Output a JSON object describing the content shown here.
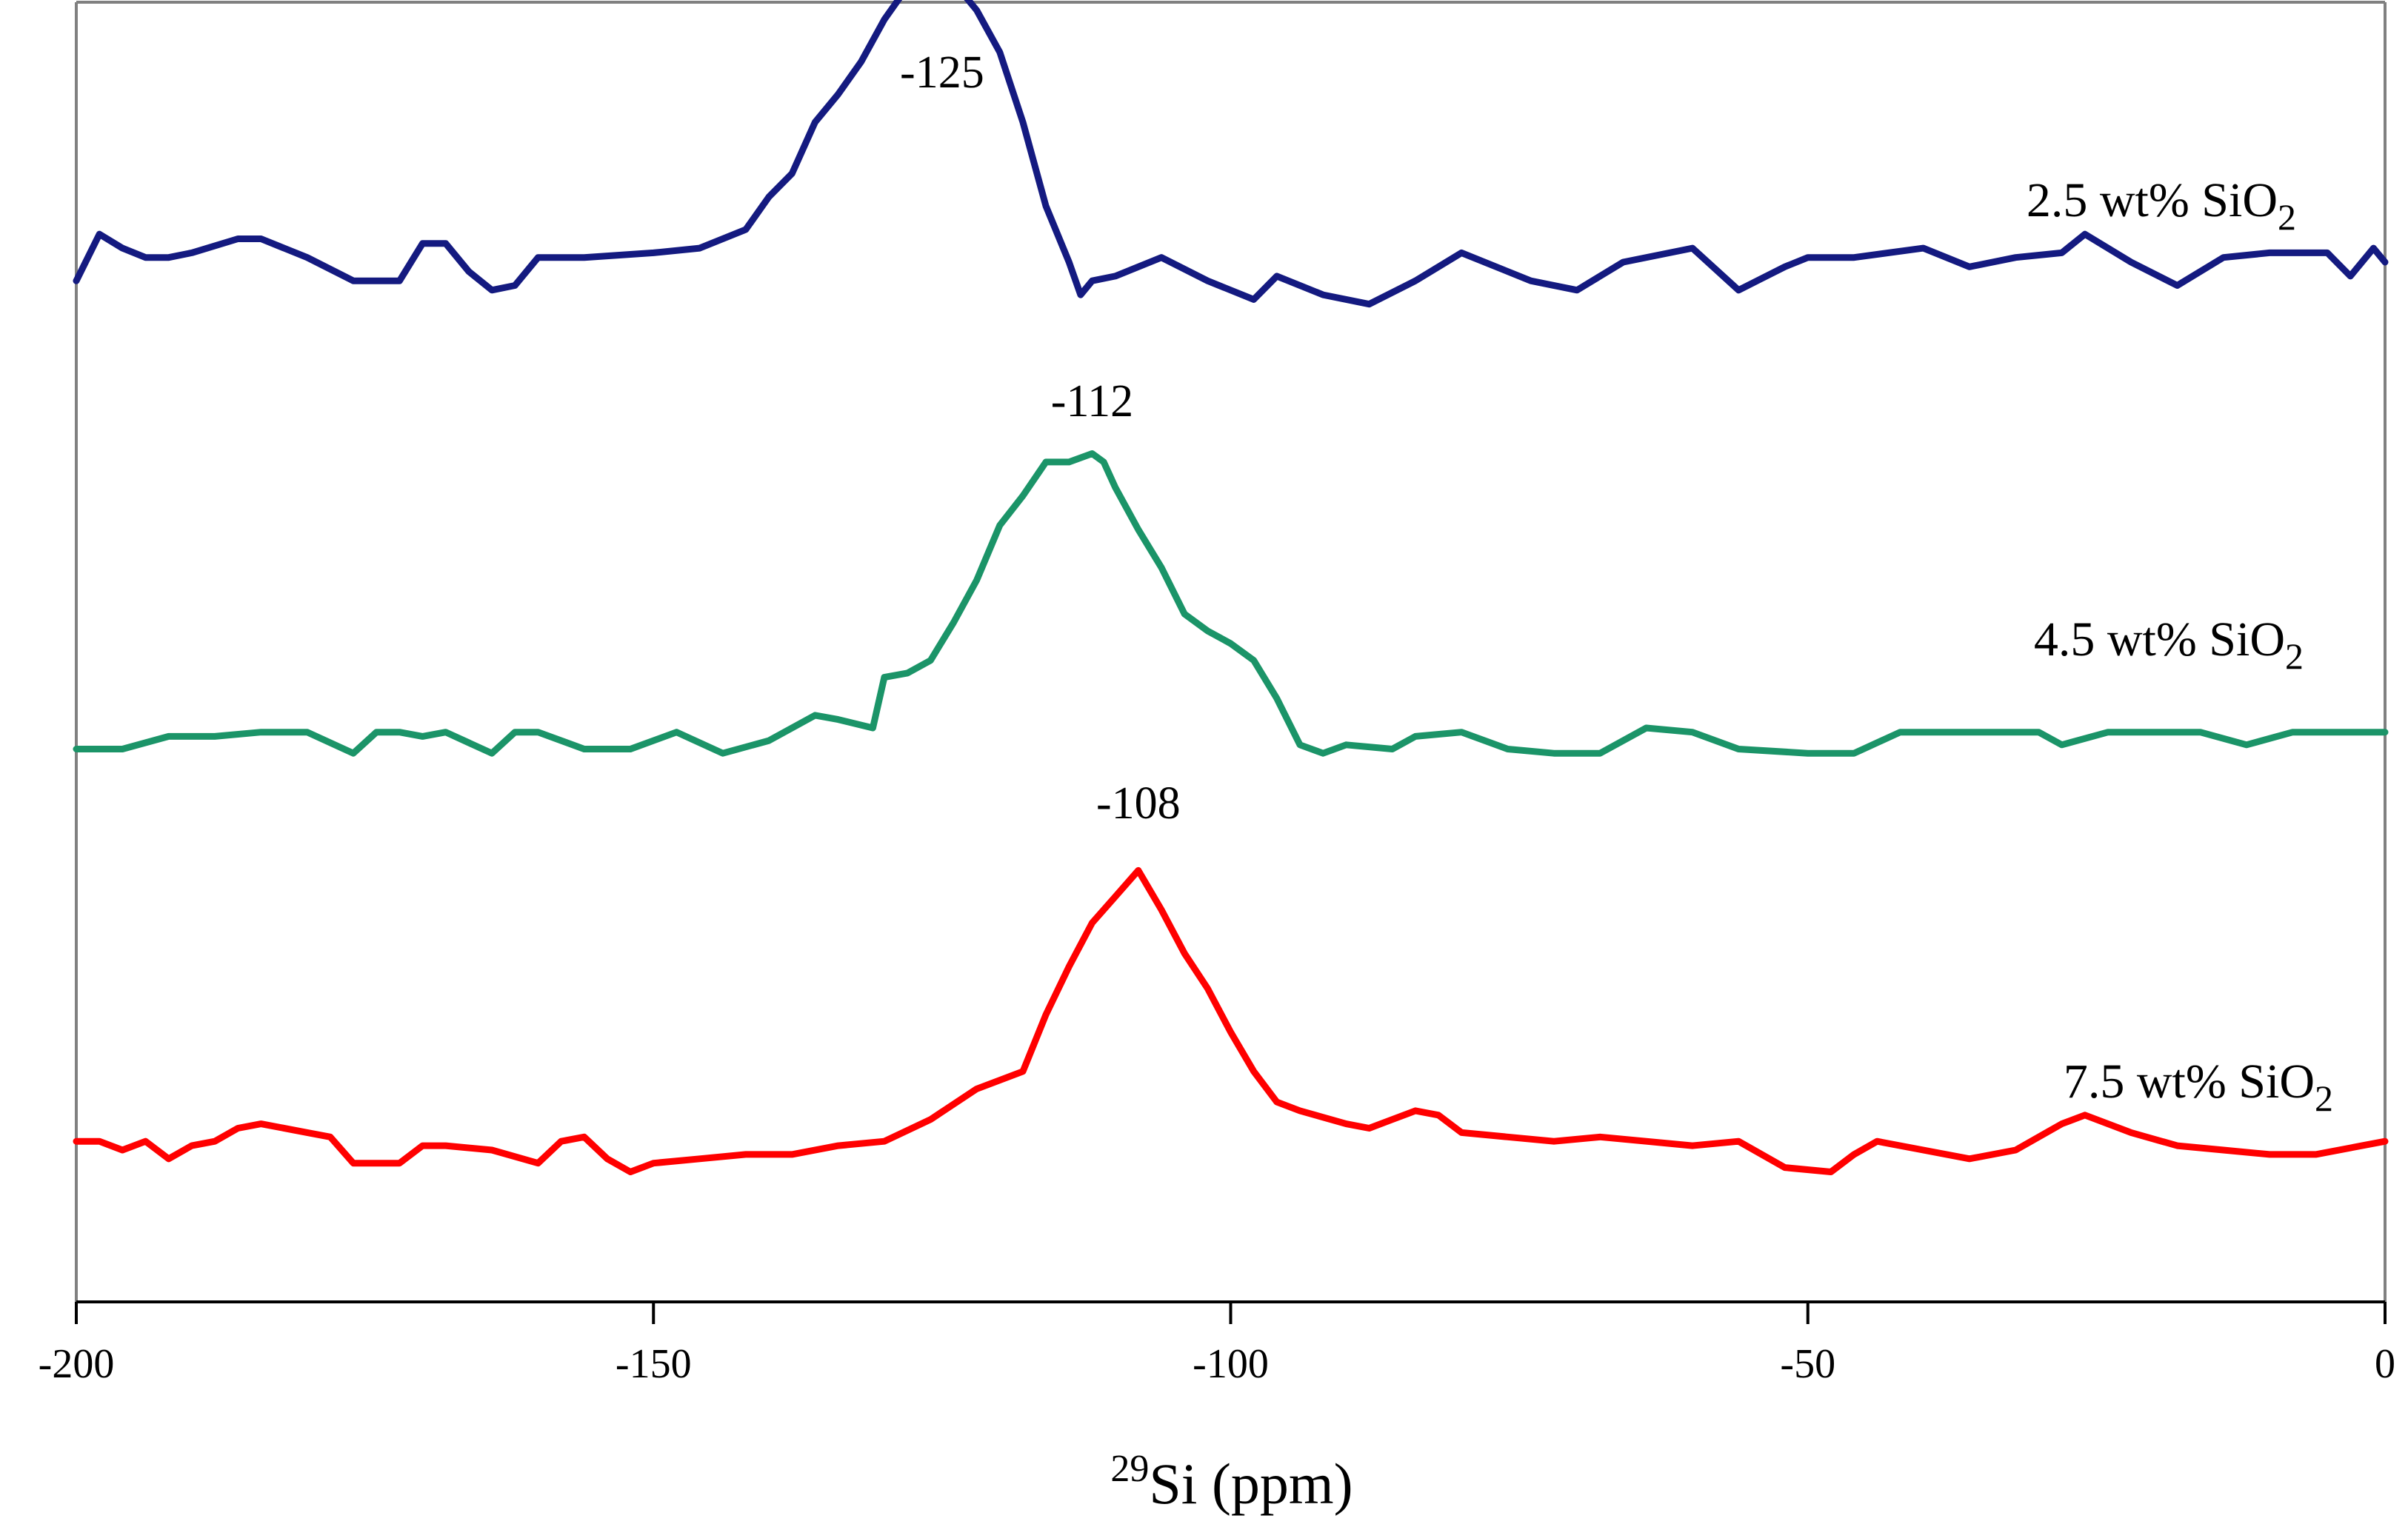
{
  "chart_data": {
    "type": "line",
    "title": "",
    "xlabel": {
      "superscript": "29",
      "main": "Si (ppm)"
    },
    "xlim": [
      -200,
      0
    ],
    "xticks": [
      -200,
      -150,
      -100,
      -50,
      0
    ],
    "ylabel": "",
    "grid": false,
    "legend": "none",
    "series": [
      {
        "name": "2.5 wt% SiO2",
        "label": {
          "main": "2.5 wt% SiO",
          "sub": "2"
        },
        "color": "#141a80",
        "peak_label": "-125",
        "peak_x": -125,
        "x": [
          -200,
          -198,
          -196,
          -194,
          -192,
          -190,
          -186,
          -184,
          -180,
          -176,
          -172,
          -170,
          -168,
          -166,
          -164,
          -162,
          -160,
          -156,
          -150,
          -146,
          -142,
          -140,
          -138,
          -136,
          -134,
          -132,
          -130,
          -128,
          -126,
          -124,
          -122,
          -120,
          -118,
          -116,
          -114,
          -113,
          -112,
          -110,
          -106,
          -102,
          -98,
          -96,
          -92,
          -88,
          -84,
          -80,
          -74,
          -70,
          -66,
          -60,
          -56,
          -52,
          -50,
          -46,
          -40,
          -36,
          -32,
          -28,
          -26,
          -22,
          -18,
          -14,
          -10,
          -5,
          -3,
          -1,
          0
        ],
        "y": [
          6,
          16,
          13,
          11,
          11,
          12,
          15,
          15,
          11,
          6,
          6,
          14,
          14,
          8,
          4,
          5,
          11,
          11,
          12,
          13,
          17,
          24,
          29,
          40,
          46,
          53,
          62,
          69,
          72,
          70,
          64,
          55,
          40,
          22,
          10,
          3,
          6,
          7,
          11,
          6,
          2,
          7,
          3,
          1,
          6,
          12,
          6,
          4,
          10,
          13,
          4,
          9,
          11,
          11,
          13,
          9,
          11,
          12,
          16,
          10,
          5,
          11,
          12,
          12,
          7,
          13,
          10
        ]
      },
      {
        "name": "4.5 wt% SiO2",
        "label": {
          "main": "4.5 wt% SiO",
          "sub": "2"
        },
        "color": "#1b9468",
        "peak_label": "-112",
        "peak_x": -112,
        "x": [
          -200,
          -196,
          -192,
          -188,
          -184,
          -180,
          -176,
          -174,
          -172,
          -170,
          -168,
          -164,
          -162,
          -160,
          -156,
          -152,
          -148,
          -144,
          -140,
          -136,
          -134,
          -131,
          -130,
          -128,
          -126,
          -124,
          -122,
          -120,
          -118,
          -116,
          -114,
          -112,
          -111,
          -110,
          -108,
          -106,
          -104,
          -102,
          -100,
          -98,
          -96,
          -94,
          -92,
          -90,
          -86,
          -84,
          -80,
          -76,
          -72,
          -68,
          -64,
          -60,
          -56,
          -50,
          -46,
          -42,
          -36,
          -30,
          -28,
          -24,
          -20,
          -16,
          -12,
          -8,
          -4,
          0
        ],
        "y": [
          5,
          5,
          8,
          8,
          9,
          9,
          4,
          9,
          9,
          8,
          9,
          4,
          9,
          9,
          5,
          5,
          9,
          4,
          7,
          13,
          12,
          10,
          22,
          23,
          26,
          35,
          45,
          58,
          65,
          73,
          73,
          75,
          73,
          67,
          57,
          48,
          37,
          33,
          30,
          26,
          17,
          6,
          4,
          6,
          5,
          8,
          9,
          5,
          4,
          4,
          10,
          9,
          5,
          4,
          4,
          9,
          9,
          9,
          6,
          9,
          9,
          9,
          6,
          9,
          9,
          9
        ]
      },
      {
        "name": "7.5 wt% SiO2",
        "label": {
          "main": "7.5 wt% SiO",
          "sub": "2"
        },
        "color": "#ff0000",
        "peak_label": "-108",
        "peak_x": -108,
        "x": [
          -200,
          -198,
          -196,
          -194,
          -192,
          -190,
          -188,
          -186,
          -184,
          -180,
          -178,
          -176,
          -172,
          -170,
          -168,
          -164,
          -160,
          -158,
          -156,
          -154,
          -152,
          -150,
          -146,
          -142,
          -138,
          -134,
          -130,
          -126,
          -122,
          -118,
          -116,
          -114,
          -112,
          -110,
          -108,
          -106,
          -104,
          -102,
          -100,
          -98,
          -96,
          -94,
          -90,
          -88,
          -86,
          -84,
          -82,
          -80,
          -76,
          -72,
          -68,
          -64,
          -60,
          -56,
          -52,
          -48,
          -46,
          -44,
          -40,
          -36,
          -32,
          -28,
          -26,
          -22,
          -18,
          -14,
          -10,
          -6,
          -2,
          0
        ],
        "y": [
          12,
          12,
          10,
          12,
          8,
          11,
          12,
          15,
          16,
          14,
          13,
          7,
          7,
          11,
          11,
          10,
          7,
          12,
          13,
          8,
          5,
          7,
          8,
          9,
          9,
          11,
          12,
          17,
          24,
          28,
          41,
          52,
          62,
          68,
          74,
          65,
          55,
          47,
          37,
          28,
          21,
          19,
          16,
          15,
          17,
          19,
          18,
          14,
          13,
          12,
          13,
          12,
          11,
          12,
          6,
          5,
          9,
          12,
          10,
          8,
          10,
          16,
          18,
          14,
          11,
          10,
          9,
          9,
          11,
          12
        ]
      }
    ]
  }
}
